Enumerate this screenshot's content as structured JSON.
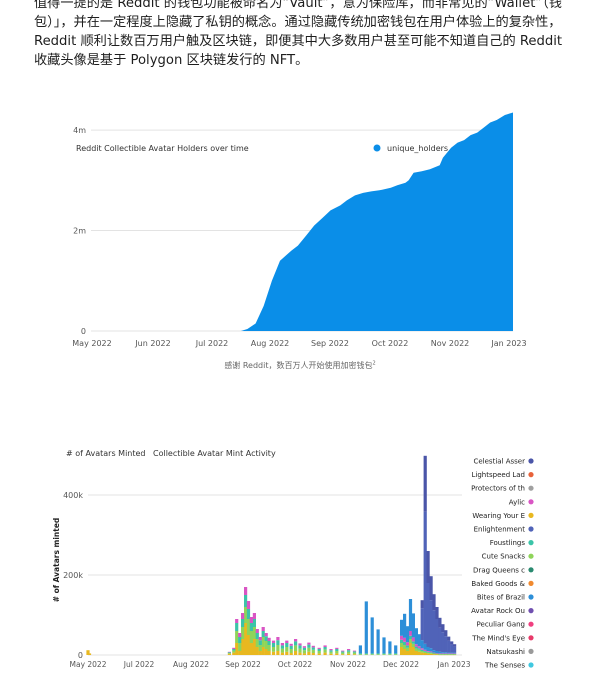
{
  "article": {
    "line1": "值得一提的是 Reddit 的钱包功能被命名为“Vault”，意为保险库，而非常见的“Wallet”（钱",
    "line2": "包）」，并在一定程度上隐藏了私钥的概念。通过隐藏传统加密钱包在用户体验上的复杂性，",
    "line3": "Reddit 顺利让数百万用户触及区块链，即便其中大多数用户甚至可能不知道自己的 Reddit",
    "line4": "收藏头像是基于 Polygon 区块链发行的 NFT。"
  },
  "caption": {
    "text": "感谢 Reddit，数百万人开始使用加密钱包",
    "note": "2"
  },
  "colors": {
    "area_blue": "#0a8ee8",
    "grid": "#e3e3e3"
  },
  "chart_data": [
    {
      "type": "area",
      "title": "Reddit Collectible Avatar Holders over time",
      "legend": [
        "unique_holders"
      ],
      "legend_position": "top-right",
      "x_ticks": [
        "May 2022",
        "Jun 2022",
        "Jul 2022",
        "Aug 2022",
        "Sep 2022",
        "Oct 2022",
        "Nov 2022",
        "Jan 2023"
      ],
      "y_ticks": [
        "0",
        "2m",
        "4m"
      ],
      "ylim": [
        0,
        4300000
      ],
      "grid": true,
      "series": [
        {
          "name": "unique_holders",
          "color": "#0a8ee8",
          "x": [
            "2022-05-01",
            "2022-07-15",
            "2022-08-01",
            "2022-08-05",
            "2022-08-10",
            "2022-08-15",
            "2022-08-20",
            "2022-08-25",
            "2022-09-01",
            "2022-09-05",
            "2022-09-10",
            "2022-09-15",
            "2022-09-20",
            "2022-09-25",
            "2022-10-01",
            "2022-10-05",
            "2022-10-10",
            "2022-10-15",
            "2022-10-20",
            "2022-10-25",
            "2022-11-01",
            "2022-11-05",
            "2022-11-10",
            "2022-11-12",
            "2022-11-15",
            "2022-11-20",
            "2022-11-25",
            "2022-12-01",
            "2022-12-03",
            "2022-12-08",
            "2022-12-12",
            "2022-12-16",
            "2022-12-20",
            "2022-12-24",
            "2022-12-28",
            "2023-01-01",
            "2023-01-05",
            "2023-01-10",
            "2023-01-15"
          ],
          "values": [
            0,
            0,
            0,
            40000,
            150000,
            500000,
            1000000,
            1400000,
            1600000,
            1700000,
            1900000,
            2100000,
            2250000,
            2400000,
            2500000,
            2600000,
            2700000,
            2750000,
            2780000,
            2800000,
            2850000,
            2900000,
            2950000,
            3000000,
            3150000,
            3180000,
            3220000,
            3300000,
            3450000,
            3650000,
            3750000,
            3800000,
            3900000,
            3950000,
            4050000,
            4150000,
            4200000,
            4300000,
            4350000
          ]
        }
      ]
    },
    {
      "type": "bar",
      "stacked": true,
      "title": "Collectible Avatar Mint Activity",
      "ylabel": "# of Avatars minted",
      "ylabel_top": "# of Avatars Minted",
      "x_ticks": [
        "May 2022",
        "Jul 2022",
        "Aug 2022",
        "Sep 2022",
        "Oct 2022",
        "Nov 2022",
        "Dec 2022",
        "Jan 2023"
      ],
      "y_ticks": [
        "0",
        "200k",
        "400k"
      ],
      "ylim": [
        0,
        500000
      ],
      "grid": true,
      "legend_position": "right",
      "legend": [
        {
          "name": "Celestial Asser",
          "color": "#4a55a8"
        },
        {
          "name": "Lightspeed Lad",
          "color": "#e8623a"
        },
        {
          "name": "Protectors of th",
          "color": "#a0a0a0"
        },
        {
          "name": "Aylic",
          "color": "#d955c4"
        },
        {
          "name": "Wearing Your E",
          "color": "#e8b820"
        },
        {
          "name": "Enlightenment",
          "color": "#5063b8"
        },
        {
          "name": "Foustlings",
          "color": "#3bc4a8"
        },
        {
          "name": "Cute Snacks",
          "color": "#8fd45a"
        },
        {
          "name": "Drag Queens c",
          "color": "#2a8a70"
        },
        {
          "name": "Baked Goods &",
          "color": "#f08a30"
        },
        {
          "name": "Bites of Brazil",
          "color": "#2d8fd8"
        },
        {
          "name": "Avatar Rock Ou",
          "color": "#7050b0"
        },
        {
          "name": "Peculiar Gang",
          "color": "#f04080"
        },
        {
          "name": "The Mind's Eye",
          "color": "#e83a6a"
        },
        {
          "name": "Natsukashi",
          "color": "#9a9a9a"
        },
        {
          "name": "The Senses",
          "color": "#40c8e0"
        }
      ],
      "x": [
        "2022-05-01",
        "2022-05-02",
        "2022-08-05",
        "2022-08-08",
        "2022-08-10",
        "2022-08-12",
        "2022-08-14",
        "2022-08-16",
        "2022-08-18",
        "2022-08-20",
        "2022-08-22",
        "2022-08-24",
        "2022-08-26",
        "2022-08-28",
        "2022-08-30",
        "2022-09-01",
        "2022-09-04",
        "2022-09-07",
        "2022-09-10",
        "2022-09-13",
        "2022-09-16",
        "2022-09-19",
        "2022-09-22",
        "2022-09-25",
        "2022-09-28",
        "2022-10-01",
        "2022-10-05",
        "2022-10-09",
        "2022-10-13",
        "2022-10-17",
        "2022-10-21",
        "2022-10-25",
        "2022-10-29",
        "2022-11-02",
        "2022-11-06",
        "2022-11-10",
        "2022-11-14",
        "2022-11-18",
        "2022-11-22",
        "2022-11-26",
        "2022-11-30",
        "2022-12-02",
        "2022-12-04",
        "2022-12-06",
        "2022-12-08",
        "2022-12-10",
        "2022-12-12",
        "2022-12-14",
        "2022-12-16",
        "2022-12-18",
        "2022-12-20",
        "2022-12-22",
        "2022-12-24",
        "2022-12-26",
        "2022-12-28",
        "2022-12-30",
        "2023-01-01",
        "2023-01-03",
        "2023-01-05"
      ],
      "series": [
        {
          "name": "Wearing Your E",
          "color": "#e8b820",
          "values": [
            12000,
            4000,
            3000,
            6000,
            30000,
            10000,
            40000,
            80000,
            50000,
            30000,
            40000,
            20000,
            10000,
            20000,
            15000,
            10000,
            8000,
            10000,
            6000,
            8000,
            5000,
            10000,
            6000,
            4000,
            8000,
            5000,
            4000,
            6000,
            3000,
            4000,
            2000,
            3000,
            2000,
            0,
            0,
            0,
            0,
            0,
            0,
            0,
            20000,
            15000,
            10000,
            30000,
            20000,
            10000,
            8000,
            6000,
            5000,
            4000,
            3000,
            2000,
            2000,
            1000,
            1000,
            1000,
            1000,
            1000,
            1000
          ]
        },
        {
          "name": "Cute Snacks",
          "color": "#8fd45a",
          "values": [
            0,
            0,
            2000,
            5000,
            30000,
            20000,
            30000,
            40000,
            40000,
            30000,
            30000,
            20000,
            15000,
            25000,
            20000,
            15000,
            12000,
            15000,
            10000,
            12000,
            10000,
            14000,
            10000,
            8000,
            10000,
            8000,
            6000,
            8000,
            5000,
            6000,
            4000,
            5000,
            4000,
            2000,
            2000,
            2000,
            2000,
            2000,
            2000,
            2000,
            10000,
            10000,
            8000,
            10000,
            8000,
            6000,
            5000,
            4000,
            3000,
            2000,
            2000,
            2000,
            1000,
            1000,
            1000,
            1000,
            1000,
            1000,
            1000
          ]
        },
        {
          "name": "Foustlings",
          "color": "#3bc4a8",
          "values": [
            0,
            0,
            2000,
            4000,
            20000,
            15000,
            20000,
            30000,
            25000,
            20000,
            20000,
            15000,
            12000,
            15000,
            12000,
            10000,
            10000,
            12000,
            8000,
            10000,
            8000,
            10000,
            8000,
            6000,
            8000,
            6000,
            5000,
            6000,
            4000,
            5000,
            3000,
            4000,
            3000,
            2000,
            2000,
            2000,
            2000,
            2000,
            2000,
            2000,
            8000,
            8000,
            6000,
            8000,
            6000,
            5000,
            4000,
            3000,
            2000,
            2000,
            2000,
            1000,
            1000,
            1000,
            1000,
            1000,
            1000,
            1000,
            1000
          ]
        },
        {
          "name": "Aylic",
          "color": "#d955c4",
          "values": [
            0,
            0,
            1000,
            3000,
            10000,
            10000,
            15000,
            20000,
            20000,
            15000,
            15000,
            10000,
            8000,
            10000,
            8000,
            8000,
            6000,
            8000,
            6000,
            6000,
            5000,
            6000,
            5000,
            4000,
            5000,
            4000,
            3000,
            4000,
            3000,
            3000,
            2000,
            3000,
            2000,
            0,
            0,
            0,
            0,
            0,
            0,
            0,
            10000,
            10000,
            8000,
            12000,
            10000,
            6000,
            5000,
            4000,
            3000,
            2000,
            2000,
            1000,
            1000,
            1000,
            1000,
            1000,
            1000,
            1000,
            1000
          ]
        },
        {
          "name": "Bites of Brazil",
          "color": "#2d8fd8",
          "values": [
            0,
            0,
            0,
            0,
            0,
            0,
            0,
            0,
            0,
            0,
            0,
            0,
            0,
            0,
            0,
            0,
            0,
            0,
            0,
            0,
            0,
            0,
            0,
            0,
            0,
            0,
            0,
            0,
            0,
            0,
            0,
            0,
            0,
            20000,
            130000,
            90000,
            60000,
            40000,
            30000,
            20000,
            40000,
            60000,
            40000,
            80000,
            60000,
            40000,
            30000,
            20000,
            15000,
            10000,
            8000,
            6000,
            5000,
            4000,
            3000,
            3000,
            2000,
            2000,
            2000
          ]
        },
        {
          "name": "Enlightenment",
          "color": "#5063b8",
          "values": [
            0,
            0,
            0,
            0,
            0,
            0,
            0,
            0,
            0,
            0,
            0,
            0,
            0,
            0,
            0,
            0,
            0,
            0,
            0,
            0,
            0,
            0,
            0,
            0,
            0,
            0,
            0,
            0,
            0,
            0,
            0,
            0,
            0,
            0,
            0,
            0,
            0,
            0,
            0,
            0,
            0,
            0,
            0,
            0,
            0,
            0,
            0,
            80000,
            330000,
            160000,
            120000,
            100000,
            80000,
            60000,
            50000,
            40000,
            30000,
            20000,
            15000
          ]
        },
        {
          "name": "Celestial Asser",
          "color": "#4a55a8",
          "values": [
            0,
            0,
            0,
            0,
            0,
            0,
            0,
            0,
            0,
            0,
            0,
            0,
            0,
            0,
            0,
            0,
            0,
            0,
            0,
            0,
            0,
            0,
            0,
            0,
            0,
            0,
            0,
            0,
            0,
            0,
            0,
            0,
            0,
            0,
            0,
            0,
            0,
            0,
            0,
            0,
            0,
            0,
            0,
            0,
            0,
            0,
            0,
            20000,
            140000,
            80000,
            60000,
            40000,
            30000,
            25000,
            20000,
            15000,
            10000,
            8000,
            6000
          ]
        }
      ]
    }
  ]
}
